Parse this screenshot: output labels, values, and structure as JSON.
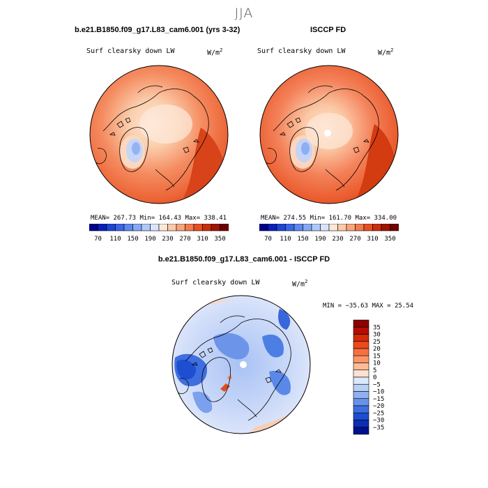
{
  "figure": {
    "season": "JJA"
  },
  "panels": {
    "model": {
      "title": "b.e21.B1850.f09_g17.L83_cam6.001 (yrs 3-32)",
      "variable": "Surf clearsky down LW",
      "units_base": "W/m",
      "units_exp": "2",
      "stats_text": "MEAN= 267.73  Min= 164.43  Max= 338.41"
    },
    "obs": {
      "title": "ISCCP FD",
      "variable": "Surf clearsky down LW",
      "units_base": "W/m",
      "units_exp": "2",
      "stats_text": "MEAN= 274.55  Min= 161.70  Max= 334.00"
    },
    "diff": {
      "title": "b.e21.B1850.f09_g17.L83_cam6.001 - ISCCP FD",
      "variable": "Surf clearsky down LW",
      "units_base": "W/m",
      "units_exp": "2",
      "minmax_text": "MIN = −35.63 MAX =  25.54"
    }
  },
  "chart_data": [
    {
      "type": "heatmap",
      "projection": "north-polar-stereographic",
      "panel": "model",
      "title": "b.e21.B1850.f09_g17.L83_cam6.001 (yrs 3-32)",
      "variable": "Surf clearsky down LW",
      "units": "W/m^2",
      "mean": 267.73,
      "min": 164.43,
      "max": 338.41,
      "colorbar": {
        "levels": [
          70,
          90,
          110,
          130,
          150,
          170,
          190,
          210,
          230,
          250,
          270,
          290,
          310,
          330,
          350
        ],
        "tick_labels": [
          "70",
          "110",
          "150",
          "190",
          "230",
          "270",
          "310",
          "350"
        ],
        "colors": [
          "#00008b",
          "#0a1fb8",
          "#1e45d6",
          "#3a66e6",
          "#5e87ef",
          "#86a9f5",
          "#b1c8fa",
          "#d9e4fc",
          "#fde8d6",
          "#fccaa8",
          "#f8a47a",
          "#f27a4d",
          "#e64f24",
          "#c92e0c",
          "#a01402",
          "#700000"
        ]
      }
    },
    {
      "type": "heatmap",
      "projection": "north-polar-stereographic",
      "panel": "obs",
      "title": "ISCCP FD",
      "variable": "Surf clearsky down LW",
      "units": "W/m^2",
      "mean": 274.55,
      "min": 161.7,
      "max": 334.0,
      "colorbar": {
        "levels": [
          70,
          90,
          110,
          130,
          150,
          170,
          190,
          210,
          230,
          250,
          270,
          290,
          310,
          330,
          350
        ],
        "tick_labels": [
          "70",
          "110",
          "150",
          "190",
          "230",
          "270",
          "310",
          "350"
        ],
        "colors": [
          "#00008b",
          "#0a1fb8",
          "#1e45d6",
          "#3a66e6",
          "#5e87ef",
          "#86a9f5",
          "#b1c8fa",
          "#d9e4fc",
          "#fde8d6",
          "#fccaa8",
          "#f8a47a",
          "#f27a4d",
          "#e64f24",
          "#c92e0c",
          "#a01402",
          "#700000"
        ]
      }
    },
    {
      "type": "heatmap",
      "projection": "north-polar-stereographic",
      "panel": "diff",
      "title": "b.e21.B1850.f09_g17.L83_cam6.001 - ISCCP FD",
      "variable": "Surf clearsky down LW",
      "units": "W/m^2",
      "min": -35.63,
      "max": 25.54,
      "colorbar": {
        "levels": [
          35,
          30,
          25,
          20,
          15,
          10,
          5,
          0,
          -5,
          -10,
          -15,
          -20,
          -25,
          -30,
          -35
        ],
        "tick_labels": [
          "35",
          "30",
          "25",
          "20",
          "15",
          "10",
          "5",
          "0",
          "−5",
          "−10",
          "−15",
          "−20",
          "−25",
          "−30",
          "−35"
        ],
        "colors": [
          "#8b0000",
          "#b50d00",
          "#d42a0a",
          "#ea4a1c",
          "#f6703f",
          "#fb9668",
          "#fdbc97",
          "#fde3cf",
          "#dde8fb",
          "#b8cff7",
          "#8fb1f1",
          "#6892ea",
          "#3d6fe0",
          "#1d4ed0",
          "#0b2fb4",
          "#00108a"
        ]
      }
    }
  ]
}
